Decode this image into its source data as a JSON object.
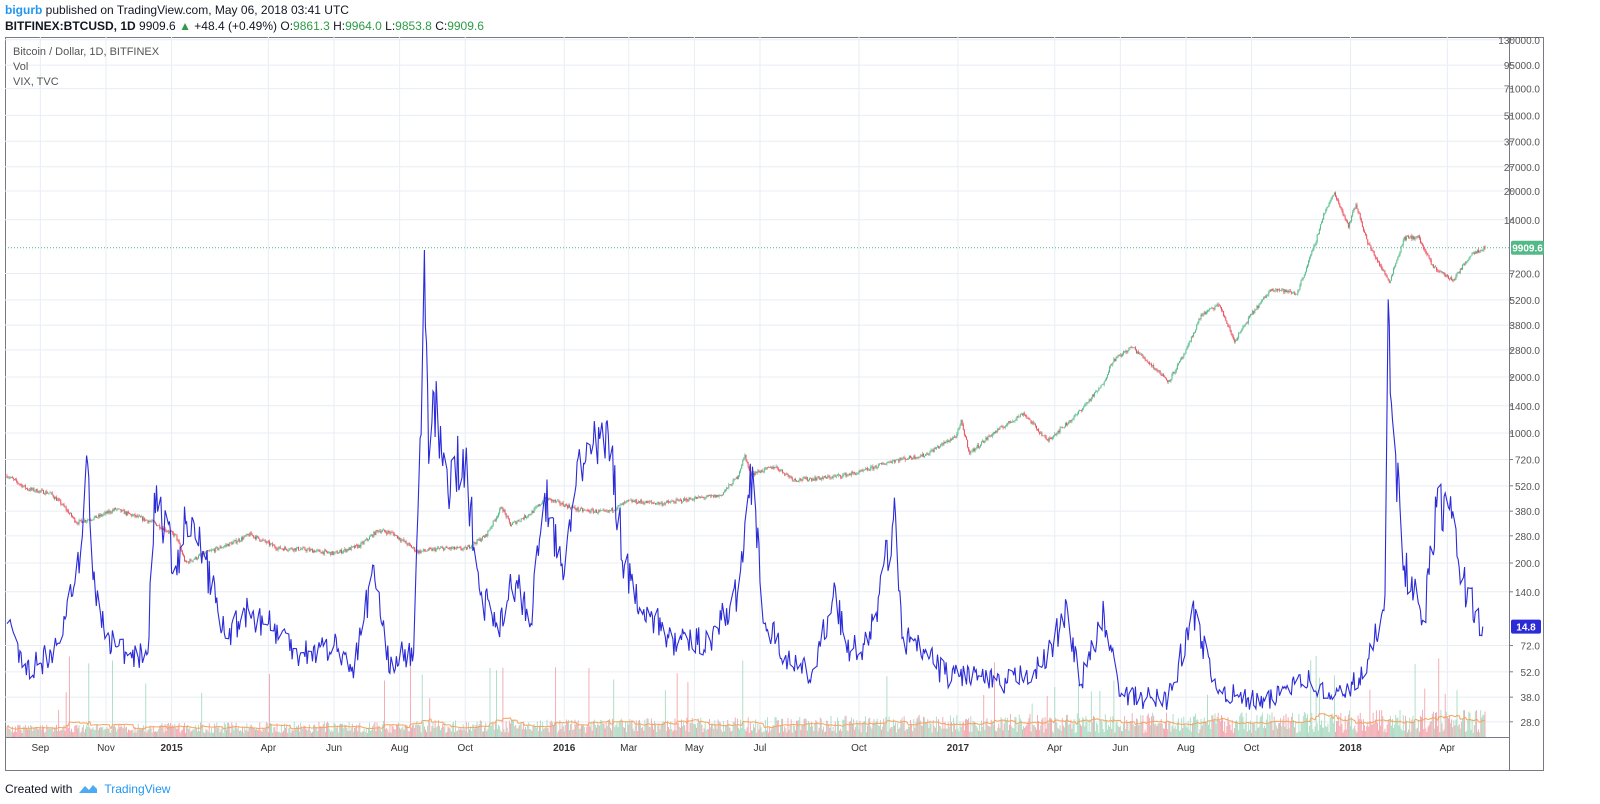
{
  "header": {
    "user": "bigurb",
    "published": "published on TradingView.com, May 06, 2018 03:41 UTC",
    "symbol": "BITFINEX:BTCUSD, 1D",
    "last": "9909.6",
    "arrow": "▲",
    "change": "+48.4 (+0.49%)",
    "o_label": "O:",
    "o_value": "9861.3",
    "h_label": "H:",
    "h_value": "9964.0",
    "l_label": "L:",
    "l_value": "9853.8",
    "c_label": "C:",
    "c_value": "9909.6"
  },
  "legend": [
    "Bitcoin / Dollar, 1D, BITFINEX",
    "Vol",
    "VIX, TVC"
  ],
  "footer": {
    "created": "Created with",
    "brand": "TradingView"
  },
  "colors": {
    "up": "#53b987",
    "down": "#eb4d5c",
    "vix": "#2b2bd8",
    "vol_up": "#a6d9bf",
    "vol_down": "#f0a2a9",
    "vol_ma": "#f7a35c",
    "grid": "#e8eef4",
    "price_line": "#53b987"
  },
  "chart_data": {
    "type": "line",
    "y_scale": "log",
    "x_tick_labels": [
      "Sep",
      "Nov",
      "2015",
      "Apr",
      "Jun",
      "Aug",
      "Oct",
      "2016",
      "Mar",
      "May",
      "Jul",
      "Oct",
      "2017",
      "Apr",
      "Jun",
      "Aug",
      "Oct",
      "2018",
      "Apr"
    ],
    "x_tick_dates": [
      "2014-09-01",
      "2014-11-01",
      "2015-01-01",
      "2015-04-01",
      "2015-06-01",
      "2015-08-01",
      "2015-10-01",
      "2016-01-01",
      "2016-03-01",
      "2016-05-01",
      "2016-07-01",
      "2016-10-01",
      "2017-01-01",
      "2017-04-01",
      "2017-06-01",
      "2017-08-01",
      "2017-10-01",
      "2018-01-01",
      "2018-04-01"
    ],
    "y_tick_labels": [
      "130000.0",
      "95000.0",
      "71000.0",
      "51000.0",
      "37000.0",
      "27000.0",
      "20000.0",
      "14000.0",
      "7200.0",
      "5200.0",
      "3800.0",
      "2800.0",
      "2000.0",
      "1400.0",
      "1000.0",
      "720.0",
      "520.0",
      "380.0",
      "280.0",
      "200.0",
      "140.0",
      "72.0",
      "52.0",
      "38.0",
      "28.0"
    ],
    "current_price_label": "9909.6",
    "current_vix_label": "14.8",
    "series": [
      {
        "name": "Bitcoin / Dollar, 1D, BITFINEX",
        "points": [
          [
            "2014-08-01",
            590
          ],
          [
            "2014-08-20",
            500
          ],
          [
            "2014-09-10",
            475
          ],
          [
            "2014-09-20",
            420
          ],
          [
            "2014-10-05",
            330
          ],
          [
            "2014-10-25",
            355
          ],
          [
            "2014-11-10",
            390
          ],
          [
            "2014-11-20",
            370
          ],
          [
            "2014-12-15",
            330
          ],
          [
            "2015-01-05",
            280
          ],
          [
            "2015-01-14",
            200
          ],
          [
            "2015-02-01",
            225
          ],
          [
            "2015-03-01",
            260
          ],
          [
            "2015-03-15",
            285
          ],
          [
            "2015-04-10",
            240
          ],
          [
            "2015-05-01",
            238
          ],
          [
            "2015-06-01",
            225
          ],
          [
            "2015-06-25",
            248
          ],
          [
            "2015-07-12",
            300
          ],
          [
            "2015-07-25",
            290
          ],
          [
            "2015-08-18",
            230
          ],
          [
            "2015-09-10",
            240
          ],
          [
            "2015-10-01",
            238
          ],
          [
            "2015-10-20",
            280
          ],
          [
            "2015-11-04",
            400
          ],
          [
            "2015-11-12",
            320
          ],
          [
            "2015-12-01",
            370
          ],
          [
            "2015-12-15",
            445
          ],
          [
            "2016-01-15",
            385
          ],
          [
            "2016-02-10",
            375
          ],
          [
            "2016-03-01",
            430
          ],
          [
            "2016-04-01",
            418
          ],
          [
            "2016-05-01",
            445
          ],
          [
            "2016-05-25",
            460
          ],
          [
            "2016-06-10",
            580
          ],
          [
            "2016-06-17",
            760
          ],
          [
            "2016-06-22",
            600
          ],
          [
            "2016-07-15",
            660
          ],
          [
            "2016-08-02",
            560
          ],
          [
            "2016-09-01",
            575
          ],
          [
            "2016-10-01",
            612
          ],
          [
            "2016-11-01",
            710
          ],
          [
            "2016-12-01",
            760
          ],
          [
            "2016-12-31",
            970
          ],
          [
            "2017-01-04",
            1150
          ],
          [
            "2017-01-12",
            780
          ],
          [
            "2017-02-01",
            980
          ],
          [
            "2017-03-03",
            1280
          ],
          [
            "2017-03-25",
            910
          ],
          [
            "2017-04-20",
            1230
          ],
          [
            "2017-05-15",
            1800
          ],
          [
            "2017-05-25",
            2450
          ],
          [
            "2017-06-12",
            2900
          ],
          [
            "2017-07-16",
            1900
          ],
          [
            "2017-08-01",
            2750
          ],
          [
            "2017-08-15",
            4300
          ],
          [
            "2017-09-01",
            4900
          ],
          [
            "2017-09-15",
            3100
          ],
          [
            "2017-10-01",
            4350
          ],
          [
            "2017-10-20",
            6000
          ],
          [
            "2017-11-12",
            5600
          ],
          [
            "2017-11-28",
            10000
          ],
          [
            "2017-12-07",
            15000
          ],
          [
            "2017-12-17",
            19500
          ],
          [
            "2017-12-30",
            13000
          ],
          [
            "2018-01-06",
            17000
          ],
          [
            "2018-01-17",
            10500
          ],
          [
            "2018-02-06",
            6500
          ],
          [
            "2018-02-20",
            11200
          ],
          [
            "2018-03-05",
            11300
          ],
          [
            "2018-03-18",
            7900
          ],
          [
            "2018-04-06",
            6600
          ],
          [
            "2018-04-24",
            9300
          ],
          [
            "2018-05-06",
            9909.6
          ]
        ]
      },
      {
        "name": "VIX, TVC",
        "points": [
          [
            "2014-08-01",
            15
          ],
          [
            "2014-08-15",
            12
          ],
          [
            "2014-09-01",
            12.3
          ],
          [
            "2014-09-20",
            14
          ],
          [
            "2014-10-10",
            21
          ],
          [
            "2014-10-15",
            26
          ],
          [
            "2014-10-20",
            18
          ],
          [
            "2014-11-01",
            14
          ],
          [
            "2014-11-20",
            13
          ],
          [
            "2014-12-10",
            13
          ],
          [
            "2014-12-16",
            24
          ],
          [
            "2015-01-05",
            19
          ],
          [
            "2015-01-15",
            22
          ],
          [
            "2015-01-30",
            20
          ],
          [
            "2015-02-20",
            14
          ],
          [
            "2015-03-10",
            16
          ],
          [
            "2015-04-01",
            15
          ],
          [
            "2015-05-01",
            13
          ],
          [
            "2015-06-01",
            13.5
          ],
          [
            "2015-06-20",
            12
          ],
          [
            "2015-07-08",
            19
          ],
          [
            "2015-07-20",
            12.5
          ],
          [
            "2015-08-14",
            13
          ],
          [
            "2015-08-21",
            28
          ],
          [
            "2015-08-24",
            40.7
          ],
          [
            "2015-08-28",
            26
          ],
          [
            "2015-09-01",
            31
          ],
          [
            "2015-09-15",
            24
          ],
          [
            "2015-09-29",
            27
          ],
          [
            "2015-10-15",
            17
          ],
          [
            "2015-11-01",
            15
          ],
          [
            "2015-11-15",
            18
          ],
          [
            "2015-12-01",
            15
          ],
          [
            "2015-12-14",
            24
          ],
          [
            "2015-12-31",
            18
          ],
          [
            "2016-01-15",
            27
          ],
          [
            "2016-01-20",
            26
          ],
          [
            "2016-02-11",
            28
          ],
          [
            "2016-02-26",
            19
          ],
          [
            "2016-03-15",
            16
          ],
          [
            "2016-04-15",
            13.5
          ],
          [
            "2016-05-15",
            14
          ],
          [
            "2016-06-10",
            17
          ],
          [
            "2016-06-24",
            25.8
          ],
          [
            "2016-07-05",
            15
          ],
          [
            "2016-08-01",
            12
          ],
          [
            "2016-08-20",
            11.5
          ],
          [
            "2016-09-09",
            17.5
          ],
          [
            "2016-09-20",
            13
          ],
          [
            "2016-10-10",
            13.5
          ],
          [
            "2016-11-04",
            22.5
          ],
          [
            "2016-11-10",
            14
          ],
          [
            "2016-12-01",
            13
          ],
          [
            "2016-12-20",
            11.5
          ],
          [
            "2017-01-15",
            11.5
          ],
          [
            "2017-02-10",
            10.7
          ],
          [
            "2017-03-01",
            11.5
          ],
          [
            "2017-03-20",
            12
          ],
          [
            "2017-04-13",
            15.9
          ],
          [
            "2017-04-25",
            10.8
          ],
          [
            "2017-05-17",
            15.6
          ],
          [
            "2017-06-01",
            10
          ],
          [
            "2017-07-15",
            9.8
          ],
          [
            "2017-08-10",
            16
          ],
          [
            "2017-08-25",
            11
          ],
          [
            "2017-09-15",
            10
          ],
          [
            "2017-10-15",
            9.5
          ],
          [
            "2017-11-15",
            11.5
          ],
          [
            "2017-12-15",
            9.8
          ],
          [
            "2018-01-15",
            11.5
          ],
          [
            "2018-02-02",
            17
          ],
          [
            "2018-02-05",
            37.3
          ],
          [
            "2018-02-09",
            29
          ],
          [
            "2018-02-20",
            19
          ],
          [
            "2018-03-10",
            15
          ],
          [
            "2018-03-22",
            23
          ],
          [
            "2018-04-02",
            23
          ],
          [
            "2018-04-15",
            18
          ],
          [
            "2018-05-04",
            14.8
          ]
        ]
      }
    ]
  }
}
